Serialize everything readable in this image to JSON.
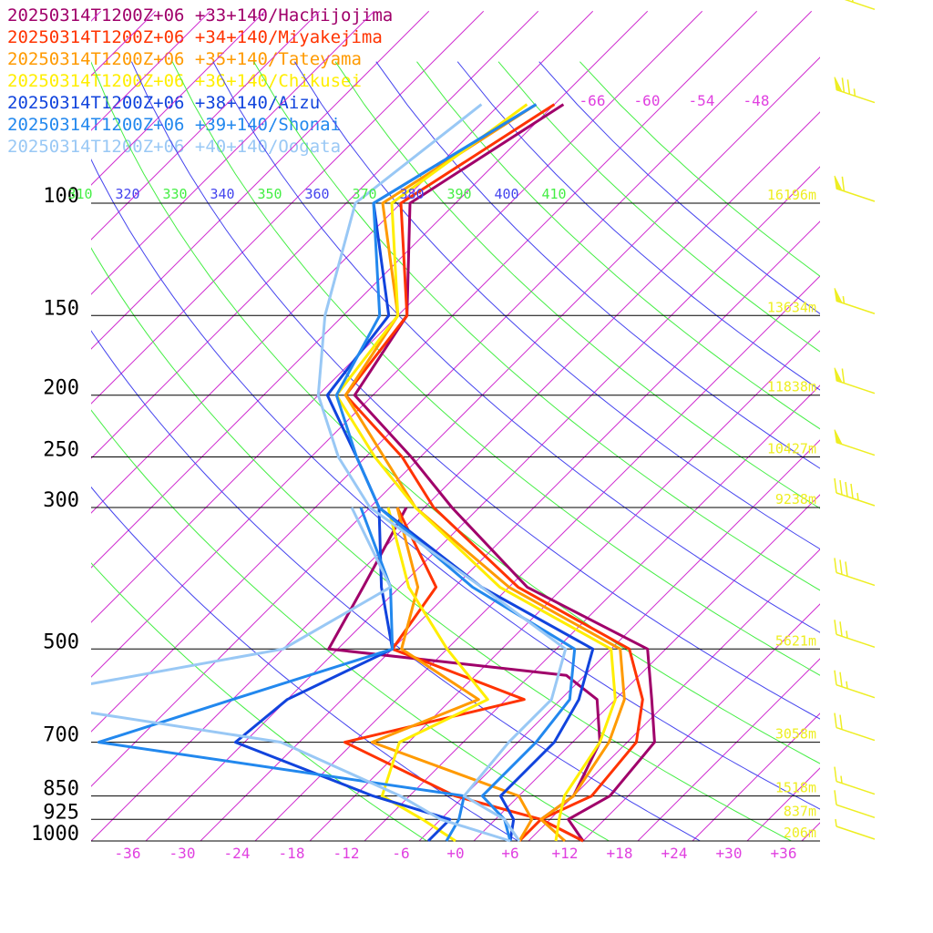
{
  "chart_data": {
    "type": "line",
    "title": "",
    "xlabel": "",
    "ylabel": "",
    "x_axis": {
      "ticks": [
        -36,
        -30,
        -24,
        -18,
        -12,
        -6,
        0,
        6,
        12,
        18,
        24,
        30,
        36
      ],
      "tick_labels": [
        "-36",
        "-30",
        "-24",
        "-18",
        "-12",
        "-6",
        "+0",
        "+6",
        "+12",
        "+18",
        "+24",
        "+30",
        "+36"
      ],
      "xlim": [
        -40,
        40
      ],
      "color": "#e040e0"
    },
    "y_axis": {
      "scale": "log",
      "ylim": [
        1000,
        100
      ],
      "levels": [
        100,
        150,
        200,
        250,
        300,
        500,
        700,
        850,
        925,
        1000
      ],
      "level_labels": [
        "100",
        "150",
        "200",
        "250",
        "300",
        "500",
        "700",
        "850",
        "925",
        "1000"
      ]
    },
    "isotherm_labels": [
      {
        "label": "-66",
        "value": -66
      },
      {
        "label": "-60",
        "value": -60
      },
      {
        "label": "-54",
        "value": -54
      },
      {
        "label": "-48",
        "value": -48
      }
    ],
    "theta_labels": [
      {
        "label": "310",
        "value": 310
      },
      {
        "label": "320",
        "value": 320
      },
      {
        "label": "330",
        "value": 330
      },
      {
        "label": "340",
        "value": 340
      },
      {
        "label": "350",
        "value": 350
      },
      {
        "label": "360",
        "value": 360
      },
      {
        "label": "370",
        "value": 370
      },
      {
        "label": "380",
        "value": 380
      },
      {
        "label": "390",
        "value": 390
      },
      {
        "label": "400",
        "value": 400
      },
      {
        "label": "410",
        "value": 410
      }
    ],
    "height_labels": [
      {
        "p": 100,
        "label": "16196m"
      },
      {
        "p": 150,
        "label": "13634m"
      },
      {
        "p": 200,
        "label": "11838m"
      },
      {
        "p": 250,
        "label": "10427m"
      },
      {
        "p": 300,
        "label": "9238m"
      },
      {
        "p": 500,
        "label": "5621m"
      },
      {
        "p": 700,
        "label": "3058m"
      },
      {
        "p": 850,
        "label": "1518m"
      },
      {
        "p": 925,
        "label": "837m"
      },
      {
        "p": 1000,
        "label": "206m"
      }
    ],
    "series": [
      {
        "name": "20250314T1200Z+06 +33+140/Hachijojima",
        "color": "#a0006a",
        "temperature": [
          [
            1000,
            14
          ],
          [
            925,
            10
          ],
          [
            850,
            12
          ],
          [
            700,
            11
          ],
          [
            600,
            6
          ],
          [
            500,
            0
          ],
          [
            400,
            -20
          ],
          [
            300,
            -37
          ],
          [
            250,
            -47
          ],
          [
            200,
            -60
          ],
          [
            150,
            -63
          ],
          [
            100,
            -75
          ],
          [
            70,
            -69
          ]
        ],
        "dewpoint": [
          [
            1000,
            14
          ],
          [
            925,
            7
          ],
          [
            850,
            8
          ],
          [
            700,
            5
          ],
          [
            600,
            0
          ],
          [
            550,
            -6
          ],
          [
            500,
            -35
          ],
          [
            400,
            -38
          ],
          [
            300,
            -42
          ]
        ]
      },
      {
        "name": "20250314T1200Z+06 +34+140/Miyakejima",
        "color": "#ff3300",
        "temperature": [
          [
            1000,
            14
          ],
          [
            925,
            7
          ],
          [
            850,
            10
          ],
          [
            700,
            9
          ],
          [
            600,
            5
          ],
          [
            500,
            -2
          ],
          [
            400,
            -21
          ],
          [
            300,
            -39
          ],
          [
            250,
            -48
          ],
          [
            200,
            -61
          ],
          [
            150,
            -63
          ],
          [
            100,
            -76
          ],
          [
            70,
            -70
          ]
        ],
        "dewpoint": [
          [
            1000,
            7
          ],
          [
            925,
            7
          ],
          [
            850,
            -5
          ],
          [
            700,
            -23
          ],
          [
            600,
            -8
          ],
          [
            500,
            -28
          ],
          [
            400,
            -30
          ],
          [
            300,
            -43
          ]
        ]
      },
      {
        "name": "20250314T1200Z+06 +35+140/Tateyama",
        "color": "#ff9a00",
        "temperature": [
          [
            1000,
            12
          ],
          [
            925,
            7
          ],
          [
            850,
            8
          ],
          [
            700,
            6
          ],
          [
            600,
            3
          ],
          [
            500,
            -3
          ],
          [
            400,
            -22
          ],
          [
            300,
            -41
          ],
          [
            250,
            -50
          ],
          [
            200,
            -61
          ],
          [
            150,
            -64
          ],
          [
            100,
            -78
          ],
          [
            70,
            -72
          ]
        ],
        "dewpoint": [
          [
            1000,
            7
          ],
          [
            925,
            6
          ],
          [
            850,
            2
          ],
          [
            700,
            -20
          ],
          [
            600,
            -13
          ],
          [
            500,
            -27
          ],
          [
            400,
            -32
          ],
          [
            300,
            -43
          ]
        ]
      },
      {
        "name": "20250314T1200Z+06 +36+140/Chikusei",
        "color": "#ffee00",
        "temperature": [
          [
            1000,
            11
          ],
          [
            925,
            9
          ],
          [
            850,
            7
          ],
          [
            700,
            5
          ],
          [
            600,
            2
          ],
          [
            500,
            -4
          ],
          [
            400,
            -23
          ],
          [
            300,
            -41
          ],
          [
            250,
            -51
          ],
          [
            200,
            -62
          ],
          [
            150,
            -64
          ],
          [
            100,
            -77
          ],
          [
            70,
            -73
          ]
        ],
        "dewpoint": [
          [
            1000,
            0
          ],
          [
            925,
            -6
          ],
          [
            850,
            -13
          ],
          [
            700,
            -17
          ],
          [
            600,
            -12
          ],
          [
            500,
            -22
          ],
          [
            400,
            -33
          ],
          [
            300,
            -44
          ]
        ]
      },
      {
        "name": "20250314T1200Z+06 +38+140/Aizu",
        "color": "#1144dd",
        "temperature": [
          [
            1000,
            6
          ],
          [
            925,
            4
          ],
          [
            850,
            0
          ],
          [
            700,
            0
          ],
          [
            600,
            -2
          ],
          [
            500,
            -6
          ],
          [
            400,
            -25
          ],
          [
            300,
            -45
          ],
          [
            250,
            -53
          ],
          [
            200,
            -63
          ],
          [
            150,
            -65
          ],
          [
            100,
            -79
          ],
          [
            70,
            -72
          ]
        ],
        "dewpoint": [
          [
            1000,
            -3
          ],
          [
            925,
            -3
          ],
          [
            850,
            -14
          ],
          [
            700,
            -35
          ],
          [
            600,
            -34
          ],
          [
            500,
            -28
          ],
          [
            400,
            -36
          ],
          [
            300,
            -45
          ]
        ]
      },
      {
        "name": "20250314T1200Z+06 +39+140/Shonai",
        "color": "#2288ee",
        "temperature": [
          [
            1000,
            6
          ],
          [
            925,
            3
          ],
          [
            850,
            -2
          ],
          [
            700,
            -2
          ],
          [
            600,
            -3
          ],
          [
            500,
            -8
          ],
          [
            400,
            -26
          ],
          [
            300,
            -45
          ],
          [
            250,
            -53
          ],
          [
            200,
            -62
          ],
          [
            150,
            -66
          ],
          [
            100,
            -79
          ],
          [
            70,
            -72
          ]
        ],
        "dewpoint": [
          [
            1000,
            -1
          ],
          [
            925,
            -2
          ],
          [
            850,
            -4
          ],
          [
            700,
            -50
          ],
          [
            600,
            -40
          ],
          [
            500,
            -28
          ],
          [
            400,
            -35
          ],
          [
            300,
            -47
          ]
        ]
      },
      {
        "name": "20250314T1200Z+06 +40+140/Oogata",
        "color": "#99c8f5",
        "temperature": [
          [
            1000,
            7
          ],
          [
            925,
            3
          ],
          [
            850,
            -4
          ],
          [
            700,
            -5
          ],
          [
            600,
            -5
          ],
          [
            500,
            -9
          ],
          [
            400,
            -25
          ],
          [
            300,
            -46
          ],
          [
            250,
            -55
          ],
          [
            200,
            -64
          ],
          [
            150,
            -72
          ],
          [
            100,
            -81
          ],
          [
            70,
            -78
          ]
        ],
        "dewpoint": [
          [
            1000,
            6
          ],
          [
            925,
            -4
          ],
          [
            850,
            -11
          ],
          [
            700,
            -30
          ],
          [
            600,
            -65
          ],
          [
            500,
            -40
          ],
          [
            400,
            -35
          ],
          [
            300,
            -48
          ]
        ]
      }
    ],
    "wind_barbs": {
      "color": "#eeee22",
      "levels": [
        1000,
        925,
        850,
        700,
        600,
        500,
        400,
        300,
        250,
        200,
        150,
        100,
        70,
        50
      ],
      "speeds_kt": [
        5,
        10,
        15,
        20,
        25,
        25,
        30,
        45,
        50,
        60,
        55,
        60,
        75,
        40
      ]
    }
  }
}
